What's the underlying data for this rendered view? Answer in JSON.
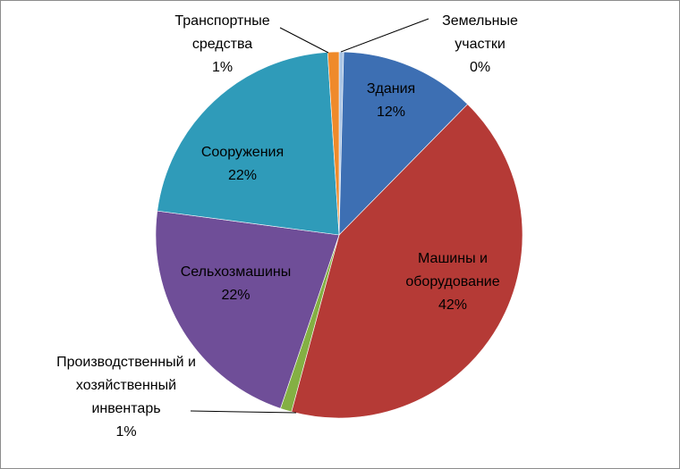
{
  "chart_data": {
    "type": "pie",
    "categories": [
      "Земельные участки",
      "Здания",
      "Машины и оборудование",
      "Производственный и хозяйственный инвентарь",
      "Сельхозмашины",
      "Сооружения",
      "Транспортные средства"
    ],
    "values": [
      0.4,
      12,
      42,
      1,
      22,
      22,
      1
    ],
    "value_labels": [
      "0%",
      "12%",
      "42%",
      "1%",
      "22%",
      "22%",
      "1%"
    ],
    "colors": [
      "#a9c4e4",
      "#3d6fb3",
      "#b53a36",
      "#84b043",
      "#6f4e98",
      "#2f9bb9",
      "#ef8a2b"
    ]
  }
}
